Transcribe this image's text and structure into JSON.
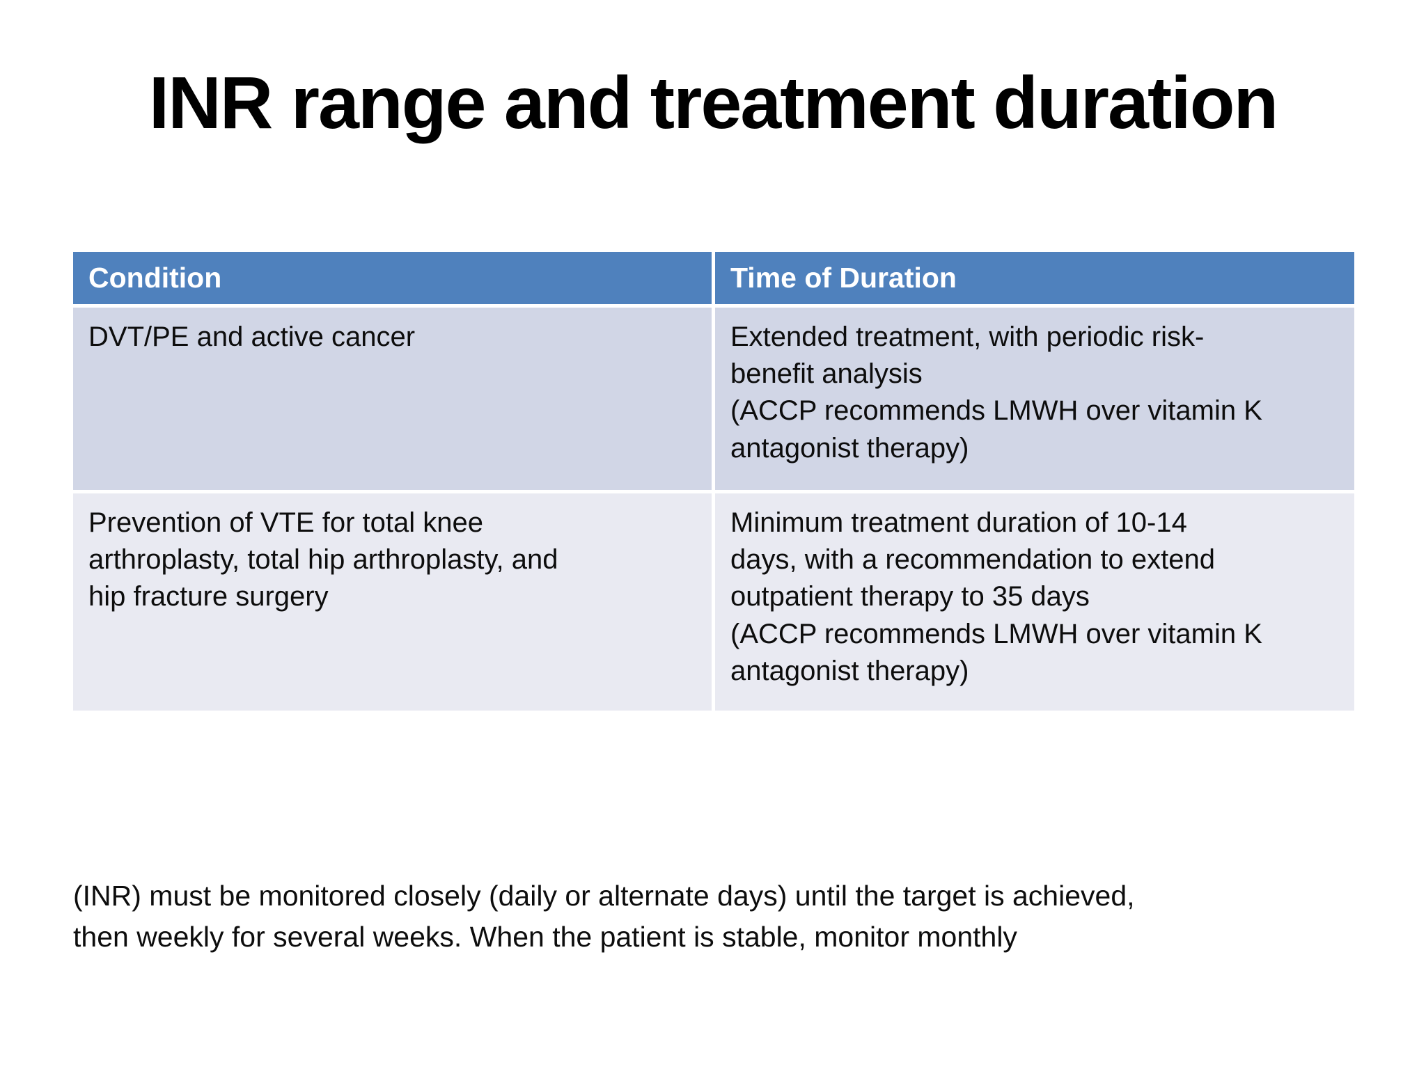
{
  "slide": {
    "title": "INR range and treatment duration",
    "colors": {
      "header_bg": "#4F81BD",
      "header_text": "#FFFFFF",
      "row1_bg": "#D1D6E6",
      "row2_bg": "#E9EAF2",
      "body_text": "#0D0D0D"
    },
    "table": {
      "headers": [
        "Condition",
        "Time of Duration"
      ],
      "rows": [
        {
          "condition": "DVT/PE and active cancer",
          "duration": "Extended treatment, with periodic risk-\nbenefit analysis\n(ACCP recommends LMWH over vitamin K\nantagonist therapy)"
        },
        {
          "condition": "Prevention of VTE for total knee\narthroplasty, total hip arthroplasty, and\nhip fracture surgery",
          "duration": "Minimum treatment duration of 10-14\ndays, with a recommendation to extend\noutpatient therapy to 35 days\n(ACCP recommends LMWH over vitamin K\nantagonist therapy)"
        }
      ]
    },
    "footer_note": "(INR) must be monitored closely (daily or alternate days) until the target is achieved,\nthen weekly for several weeks. When the patient is stable, monitor monthly"
  }
}
